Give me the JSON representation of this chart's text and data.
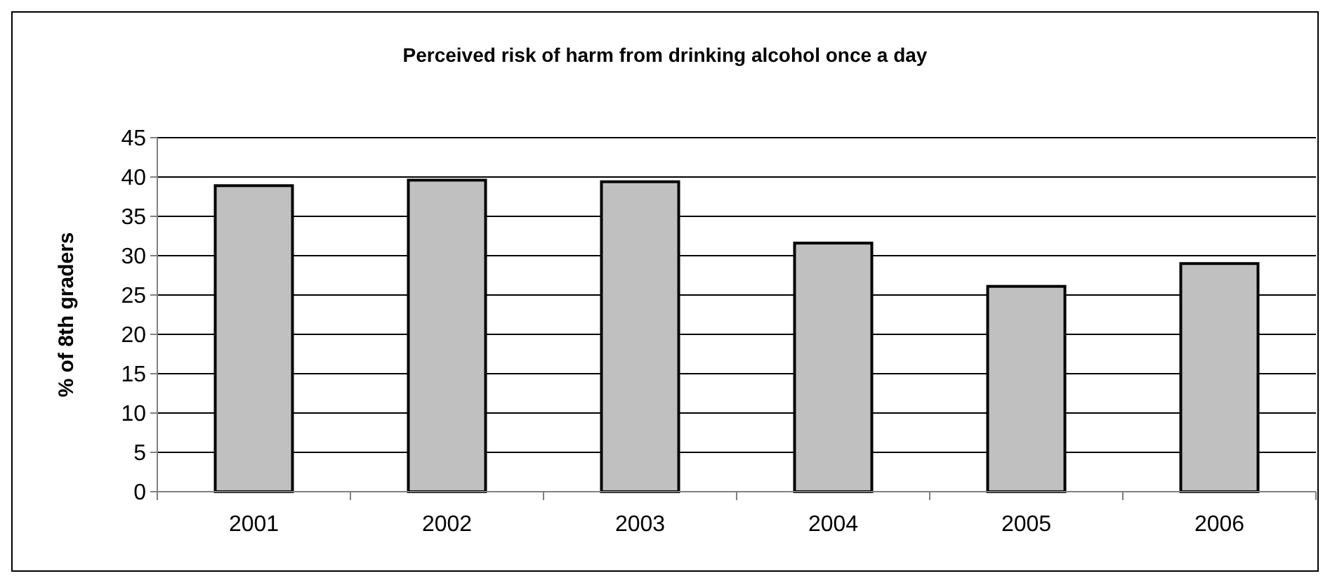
{
  "chart_data": {
    "type": "bar",
    "title": "Perceived risk of harm from drinking alcohol once a day",
    "ylabel": "% of 8th graders",
    "categories": [
      "2001",
      "2002",
      "2003",
      "2004",
      "2005",
      "2006"
    ],
    "values": [
      38.9,
      39.6,
      39.4,
      31.6,
      26.1,
      29.0
    ],
    "color": "#c0c0c0",
    "ylim": [
      0,
      45
    ],
    "yticks": [
      0,
      5,
      10,
      15,
      20,
      25,
      30,
      35,
      40,
      45
    ],
    "grid": "y"
  }
}
